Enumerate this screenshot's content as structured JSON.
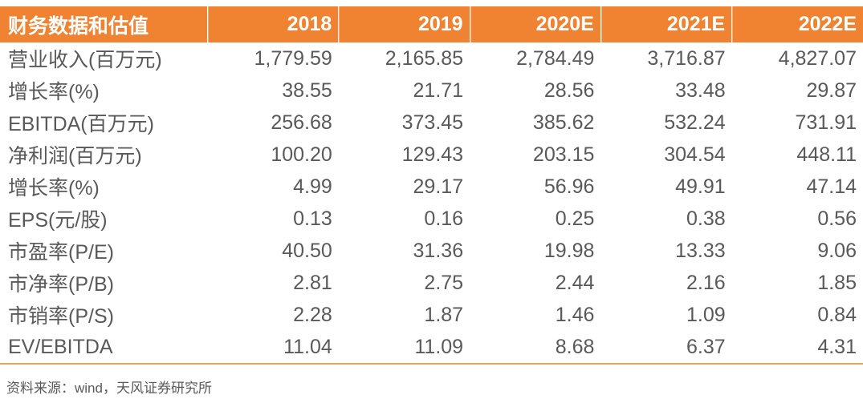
{
  "chart_data": {
    "type": "table",
    "title": "财务数据和估值",
    "columns": [
      "财务数据和估值",
      "2018",
      "2019",
      "2020E",
      "2021E",
      "2022E"
    ],
    "rows": [
      {
        "label": "营业收入(百万元)",
        "values": [
          "1,779.59",
          "2,165.85",
          "2,784.49",
          "3,716.87",
          "4,827.07"
        ]
      },
      {
        "label": "增长率(%)",
        "values": [
          "38.55",
          "21.71",
          "28.56",
          "33.48",
          "29.87"
        ]
      },
      {
        "label": "EBITDA(百万元)",
        "values": [
          "256.68",
          "373.45",
          "385.62",
          "532.24",
          "731.91"
        ]
      },
      {
        "label": "净利润(百万元)",
        "values": [
          "100.20",
          "129.43",
          "203.15",
          "304.54",
          "448.11"
        ]
      },
      {
        "label": "增长率(%)",
        "values": [
          "4.99",
          "29.17",
          "56.96",
          "49.91",
          "47.14"
        ]
      },
      {
        "label": "EPS(元/股)",
        "values": [
          "0.13",
          "0.16",
          "0.25",
          "0.38",
          "0.56"
        ]
      },
      {
        "label": "市盈率(P/E)",
        "values": [
          "40.50",
          "31.36",
          "19.98",
          "13.33",
          "9.06"
        ]
      },
      {
        "label": "市净率(P/B)",
        "values": [
          "2.81",
          "2.75",
          "2.44",
          "2.16",
          "1.85"
        ]
      },
      {
        "label": "市销率(P/S)",
        "values": [
          "2.28",
          "1.87",
          "1.46",
          "1.09",
          "0.84"
        ]
      },
      {
        "label": "EV/EBITDA",
        "values": [
          "11.04",
          "11.09",
          "8.68",
          "6.37",
          "4.31"
        ]
      }
    ],
    "source_note": "资料来源：wind，天风证券研究所",
    "layout": {
      "header_position": "top",
      "label_column_align": "left",
      "value_columns_align": "right",
      "grid": false,
      "bottom_rule": true
    },
    "colors": {
      "header_bg": "#EF8331",
      "header_text": "#FFFFFF",
      "body_text": "#595959",
      "bottom_rule": "#F2A154",
      "background": "#FFFFFF"
    }
  }
}
